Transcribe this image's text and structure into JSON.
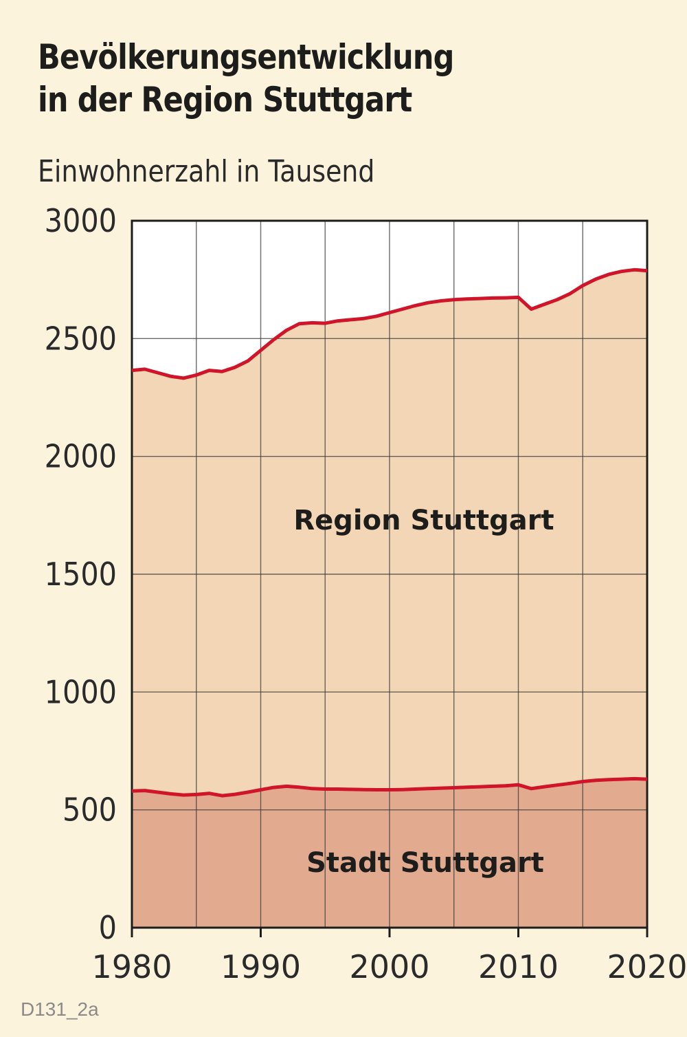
{
  "title_line1": "Bevölkerungsentwicklung",
  "title_line2": "in der Region Stuttgart",
  "source_code": "D131_2a",
  "colors": {
    "background": "#fbf3dc",
    "region_fill": "#f3d6b5",
    "stadt_fill": "#e2ab8f",
    "line": "#d0152a",
    "grid": "#3a3a3a",
    "top_area": "#ffffff"
  },
  "chart_data": {
    "type": "area",
    "title": "Bevölkerungsentwicklung in der Region Stuttgart",
    "ylabel": "Einwohnerzahl in Tausend",
    "xlabel": "",
    "xlim": [
      1980,
      2020
    ],
    "ylim": [
      0,
      3000
    ],
    "x_ticks": [
      1980,
      1990,
      2000,
      2010,
      2020
    ],
    "y_ticks": [
      0,
      500,
      1000,
      1500,
      2000,
      2500,
      3000
    ],
    "grid": true,
    "series": [
      {
        "name": "Region Stuttgart",
        "x": [
          1980,
          1981,
          1982,
          1983,
          1984,
          1985,
          1986,
          1987,
          1988,
          1989,
          1990,
          1991,
          1992,
          1993,
          1994,
          1995,
          1996,
          1997,
          1998,
          1999,
          2000,
          2001,
          2002,
          2003,
          2004,
          2005,
          2006,
          2007,
          2008,
          2009,
          2010,
          2011,
          2012,
          2013,
          2014,
          2015,
          2016,
          2017,
          2018,
          2019,
          2020
        ],
        "values": [
          2365,
          2370,
          2355,
          2340,
          2332,
          2345,
          2365,
          2360,
          2378,
          2405,
          2450,
          2495,
          2535,
          2563,
          2567,
          2565,
          2575,
          2580,
          2585,
          2595,
          2610,
          2625,
          2640,
          2652,
          2660,
          2665,
          2668,
          2670,
          2672,
          2673,
          2675,
          2625,
          2645,
          2665,
          2690,
          2725,
          2752,
          2772,
          2785,
          2792,
          2788
        ]
      },
      {
        "name": "Stadt Stuttgart",
        "x": [
          1980,
          1981,
          1982,
          1983,
          1984,
          1985,
          1986,
          1987,
          1988,
          1989,
          1990,
          1991,
          1992,
          1993,
          1994,
          1995,
          1996,
          1997,
          1998,
          1999,
          2000,
          2001,
          2002,
          2003,
          2004,
          2005,
          2006,
          2007,
          2008,
          2009,
          2010,
          2011,
          2012,
          2013,
          2014,
          2015,
          2016,
          2017,
          2018,
          2019,
          2020
        ],
        "values": [
          580,
          582,
          575,
          568,
          563,
          565,
          570,
          560,
          566,
          575,
          585,
          595,
          600,
          596,
          590,
          588,
          588,
          587,
          586,
          585,
          585,
          586,
          588,
          590,
          592,
          594,
          596,
          598,
          600,
          602,
          606,
          590,
          598,
          605,
          612,
          620,
          625,
          628,
          630,
          632,
          630
        ]
      }
    ],
    "area_labels": [
      "Region Stuttgart",
      "Stadt Stuttgart"
    ]
  }
}
